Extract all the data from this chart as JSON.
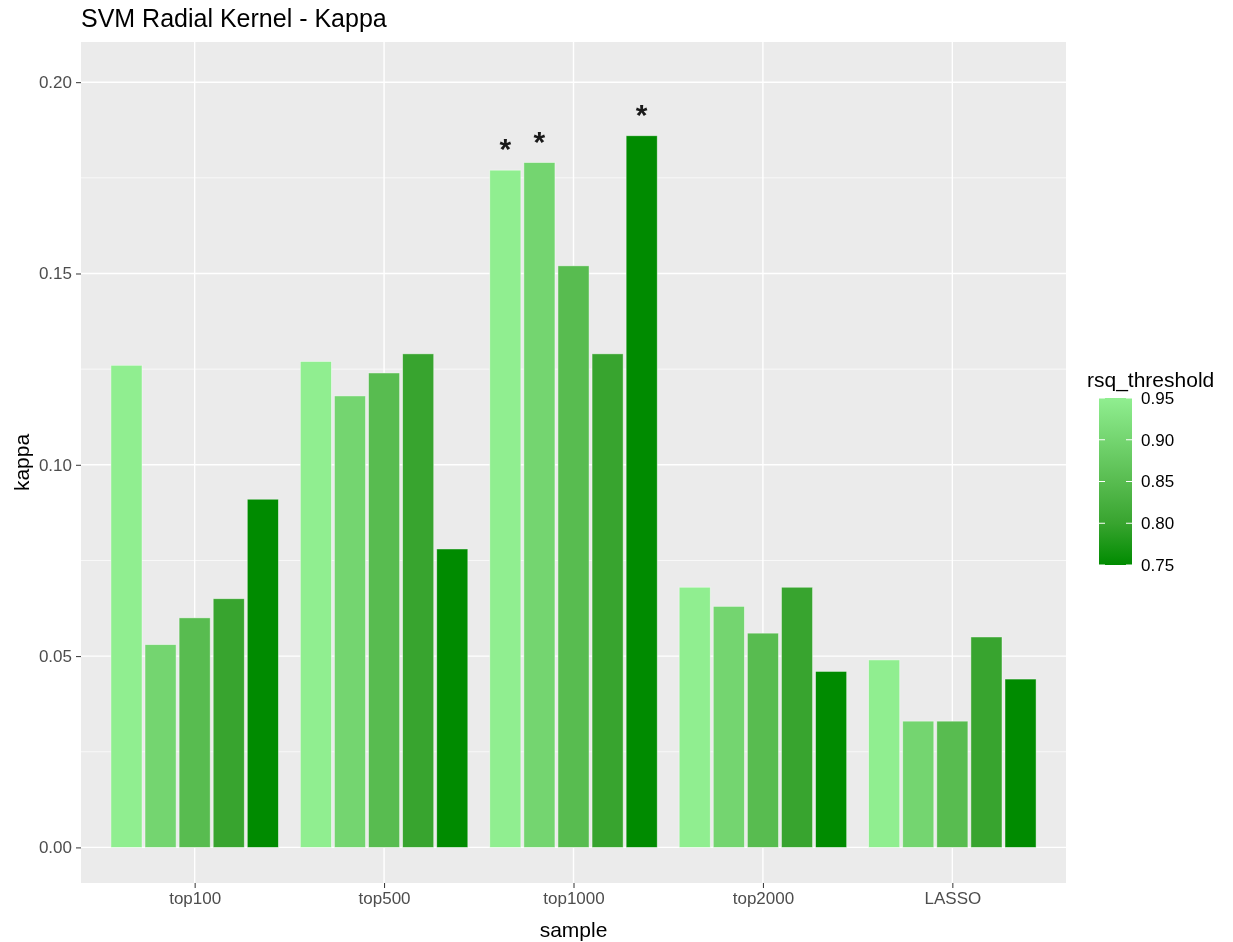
{
  "chart_data": {
    "type": "bar",
    "title": "SVM Radial Kernel - Kappa",
    "xlabel": "sample",
    "ylabel": "kappa",
    "legend_title": "rsq_threshold",
    "categories": [
      "top100",
      "top500",
      "top1000",
      "top2000",
      "LASSO"
    ],
    "series": [
      {
        "name": "0.95",
        "color": "#90ee90",
        "values": [
          0.126,
          0.127,
          0.177,
          0.068,
          0.049
        ],
        "value_labels": [
          null,
          null,
          "*",
          null,
          null
        ]
      },
      {
        "name": "0.90",
        "color": "#74d570",
        "values": [
          0.053,
          0.118,
          0.179,
          0.063,
          0.033
        ],
        "value_labels": [
          null,
          null,
          "*",
          null,
          null
        ]
      },
      {
        "name": "0.85",
        "color": "#58bc50",
        "values": [
          0.06,
          0.124,
          0.152,
          0.056,
          0.033
        ]
      },
      {
        "name": "0.80",
        "color": "#38a42f",
        "values": [
          0.065,
          0.129,
          0.129,
          0.068,
          0.055
        ]
      },
      {
        "name": "0.75",
        "color": "#008b00",
        "values": [
          0.091,
          0.078,
          0.186,
          0.046,
          0.044
        ],
        "value_labels": [
          null,
          null,
          "*",
          null,
          null
        ]
      }
    ],
    "ylim": [
      -0.0093,
      0.2105
    ],
    "yticks": [
      {
        "value": 0,
        "label": "0.00"
      },
      {
        "value": 0.05,
        "label": "0.05"
      },
      {
        "value": 0.1,
        "label": "0.10"
      },
      {
        "value": 0.15,
        "label": "0.15"
      },
      {
        "value": 0.2,
        "label": "0.20"
      }
    ],
    "grid": true,
    "legend": "right"
  }
}
